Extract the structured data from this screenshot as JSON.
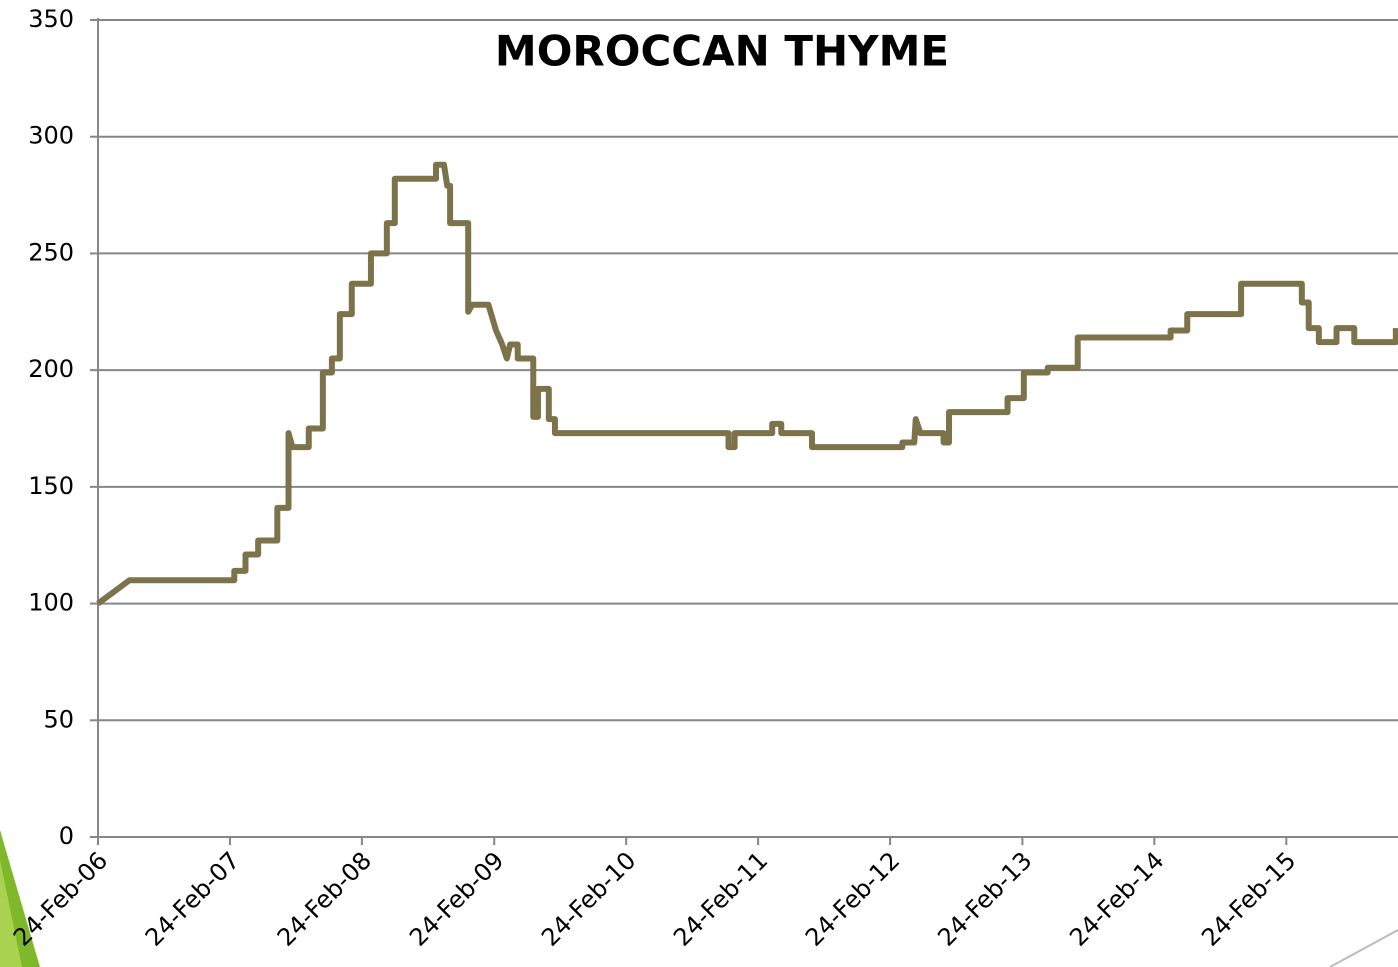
{
  "chart_data": {
    "type": "line",
    "title": "MOROCCAN THYME",
    "x": [
      "2006-02-24",
      "2006-05-22",
      "2007-03-08",
      "2007-03-08",
      "2007-04-08",
      "2007-04-08",
      "2007-05-13",
      "2007-05-13",
      "2007-07-05",
      "2007-07-05",
      "2007-08-05",
      "2007-08-05",
      "2007-08-16",
      "2007-09-30",
      "2007-09-30",
      "2007-11-08",
      "2007-11-08",
      "2007-12-03",
      "2007-12-03",
      "2007-12-25",
      "2007-12-25",
      "2008-01-27",
      "2008-01-27",
      "2008-03-20",
      "2008-03-20",
      "2008-05-03",
      "2008-05-03",
      "2008-05-25",
      "2008-05-25",
      "2008-09-16",
      "2008-09-16",
      "2008-10-08",
      "2008-10-17",
      "2008-10-25",
      "2008-10-25",
      "2008-12-14",
      "2008-12-14",
      "2008-12-25",
      "2009-02-08",
      "2009-03-01",
      "2009-03-18",
      "2009-03-31",
      "2009-04-09",
      "2009-04-30",
      "2009-04-30",
      "2009-06-12",
      "2009-06-12",
      "2009-06-25",
      "2009-06-25",
      "2009-07-25",
      "2009-07-25",
      "2009-08-11",
      "2009-08-11",
      "2010-12-04",
      "2010-12-04",
      "2010-12-21",
      "2010-12-21",
      "2011-04-04",
      "2011-04-04",
      "2011-04-29",
      "2011-04-29",
      "2011-07-23",
      "2011-07-23",
      "2012-03-29",
      "2012-03-29",
      "2012-05-01",
      "2012-05-05",
      "2012-05-18",
      "2012-07-21",
      "2012-07-21",
      "2012-08-05",
      "2012-08-05",
      "2013-01-14",
      "2013-01-14",
      "2013-02-28",
      "2013-02-28",
      "2013-05-05",
      "2013-05-05",
      "2013-07-27",
      "2013-07-27",
      "2014-04-10",
      "2014-04-10",
      "2014-05-26",
      "2014-05-26",
      "2014-10-22",
      "2014-10-22",
      "2015-04-08",
      "2015-04-08",
      "2015-04-27",
      "2015-04-27",
      "2015-05-25",
      "2015-05-25",
      "2015-07-13",
      "2015-07-13",
      "2015-08-31",
      "2015-08-31",
      "2015-12-24",
      "2015-12-24"
    ],
    "values": [
      100,
      110,
      110,
      114,
      114,
      121,
      121,
      127,
      127,
      141,
      141,
      173,
      167,
      167,
      175,
      175,
      199,
      199,
      205,
      205,
      224,
      224,
      237,
      237,
      250,
      250,
      263,
      263,
      282,
      282,
      288,
      288,
      279,
      279,
      263,
      263,
      225,
      228,
      228,
      217,
      211,
      205,
      211,
      211,
      205,
      205,
      180,
      180,
      192,
      192,
      179,
      179,
      173,
      173,
      167,
      167,
      173,
      173,
      177,
      177,
      173,
      173,
      167,
      167,
      169,
      169,
      179,
      173,
      173,
      169,
      169,
      182,
      182,
      188,
      188,
      199,
      199,
      201,
      201,
      214,
      214,
      217,
      217,
      224,
      224,
      237,
      237,
      229,
      229,
      218,
      218,
      212,
      212,
      218,
      218,
      212,
      212,
      218
    ],
    "color": "#7c734a",
    "xlim": [
      "2006-02-24",
      "2015-12-30"
    ],
    "xticks": [
      {
        "value": "2006-02-24",
        "label": "24-Feb-06"
      },
      {
        "value": "2007-02-24",
        "label": "24-Feb-07"
      },
      {
        "value": "2008-02-24",
        "label": "24-Feb-08"
      },
      {
        "value": "2009-02-24",
        "label": "24-Feb-09"
      },
      {
        "value": "2010-02-24",
        "label": "24-Feb-10"
      },
      {
        "value": "2011-02-24",
        "label": "24-Feb-11"
      },
      {
        "value": "2012-02-24",
        "label": "24-Feb-12"
      },
      {
        "value": "2013-02-24",
        "label": "24-Feb-13"
      },
      {
        "value": "2014-02-24",
        "label": "24-Feb-14"
      },
      {
        "value": "2015-02-24",
        "label": "24-Feb-15"
      }
    ],
    "ylim": [
      0,
      350
    ],
    "yticks": [
      0,
      50,
      100,
      150,
      200,
      250,
      300,
      350
    ],
    "grid": true
  }
}
